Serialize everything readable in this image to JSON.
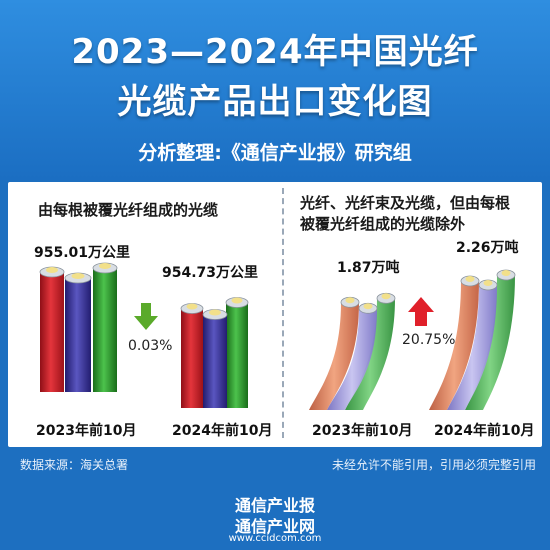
{
  "title_line1": "2023—2024年中国光纤",
  "title_line2": "光缆产品出口变化图",
  "subtitle": "分析整理:《通信产业报》研究组",
  "chart_data": [
    {
      "type": "bar",
      "title": "由每根被覆光纤组成的光缆",
      "categories": [
        "2023年前10月",
        "2024年前10月"
      ],
      "values": [
        955.01,
        954.73
      ],
      "value_labels": [
        "955.01万公里",
        "954.73万公里"
      ],
      "unit": "万公里",
      "change": "0.03%",
      "direction": "down"
    },
    {
      "type": "bar",
      "title": "光纤、光纤束及光缆，但由每根被覆光纤组成的光缆除外",
      "title_line1": "光纤、光纤束及光缆，但由每根",
      "title_line2": "被覆光纤组成的光缆除外",
      "categories": [
        "2023年前10月",
        "2024年前10月"
      ],
      "values": [
        1.87,
        2.26
      ],
      "value_labels": [
        "1.87万吨",
        "2.26万吨"
      ],
      "unit": "万吨",
      "change": "20.75%",
      "direction": "up"
    }
  ],
  "colors": {
    "header_blue": "#1d6fc0",
    "down_arrow": "#5aaa2a",
    "up_arrow": "#e0202a"
  },
  "footer": {
    "source": "数据来源：海关总署",
    "note": "未经允许不能引用，引用必须完整引用"
  },
  "brand": {
    "line1": "通信产业报",
    "line2": "通信产业网",
    "url": "www.ccidcom.com"
  }
}
